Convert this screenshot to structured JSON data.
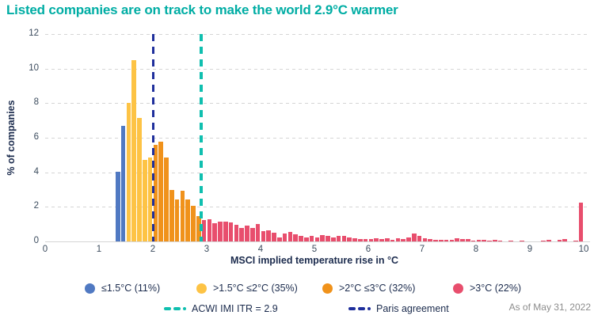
{
  "chart_data": {
    "type": "bar",
    "title": "Listed companies are on track to make the world 2.9°C warmer",
    "xlabel": "MSCI implied temperature rise in °C",
    "ylabel": "% of companies",
    "footnote": "As of May 31, 2022",
    "xlim": [
      0,
      10
    ],
    "ylim": [
      0,
      12
    ],
    "xticks": [
      0,
      1,
      2,
      3,
      4,
      5,
      6,
      7,
      8,
      9,
      10
    ],
    "yticks": [
      0,
      2,
      4,
      6,
      8,
      10,
      12
    ],
    "grid": "horizontal-dashed",
    "legend_position": "bottom",
    "bin_start": 1.3,
    "bin_width": 0.1,
    "heights": [
      4.05,
      6.7,
      8.0,
      10.5,
      7.15,
      4.7,
      4.85,
      5.6,
      5.75,
      4.85,
      3.0,
      2.45,
      2.95,
      2.45,
      2.05,
      1.45,
      1.25,
      1.28,
      1.05,
      1.15,
      1.15,
      1.1,
      0.95,
      0.8,
      0.9,
      0.8,
      1.0,
      0.6,
      0.65,
      0.5,
      0.25,
      0.45,
      0.55,
      0.4,
      0.3,
      0.25,
      0.3,
      0.25,
      0.35,
      0.3,
      0.25,
      0.3,
      0.3,
      0.25,
      0.2,
      0.15,
      0.15,
      0.15,
      0.2,
      0.15,
      0.2,
      0.1,
      0.2,
      0.15,
      0.25,
      0.45,
      0.3,
      0.2,
      0.15,
      0.1,
      0.1,
      0.1,
      0.1,
      0.2,
      0.15,
      0.15,
      0.05,
      0.1,
      0.1,
      0.05,
      0.1,
      0.05,
      0,
      0.05,
      0,
      0.05,
      0,
      0,
      0,
      0.05,
      0.1,
      0,
      0.1,
      0.15,
      0,
      0.05,
      2.25
    ],
    "categories": [
      {
        "label": "≤1.5°C (11%)",
        "share": "11%",
        "color": "#5079C2",
        "x_max": 1.5
      },
      {
        "label": ">1.5°C ≤2°C (35%)",
        "share": "35%",
        "color": "#FDC345",
        "x_max": 2.0
      },
      {
        "label": ">2°C ≤3°C (32%)",
        "share": "32%",
        "color": "#F0921B",
        "x_max": 2.9
      },
      {
        "label": ">3°C (22%)",
        "share": "22%",
        "color": "#E84E6D",
        "x_max": 10
      }
    ],
    "ref_lines": [
      {
        "label": "ACWI IMI ITR = 2.9",
        "x": 2.9,
        "color": "#0FBFAF",
        "style": "dashed",
        "name": "acwi-imi-itr-line"
      },
      {
        "label": "Paris agreement",
        "x": 2.0,
        "color": "#1F2F9C",
        "style": "dashed",
        "name": "paris-agreement-line"
      }
    ],
    "colors": {
      "title_teal": "#00ADA4",
      "text_navy": "#1B2B4D",
      "tick_gray": "#3C4C5E",
      "grid": "#D5D5D5",
      "footnote_gray": "#8C8C8C"
    }
  }
}
